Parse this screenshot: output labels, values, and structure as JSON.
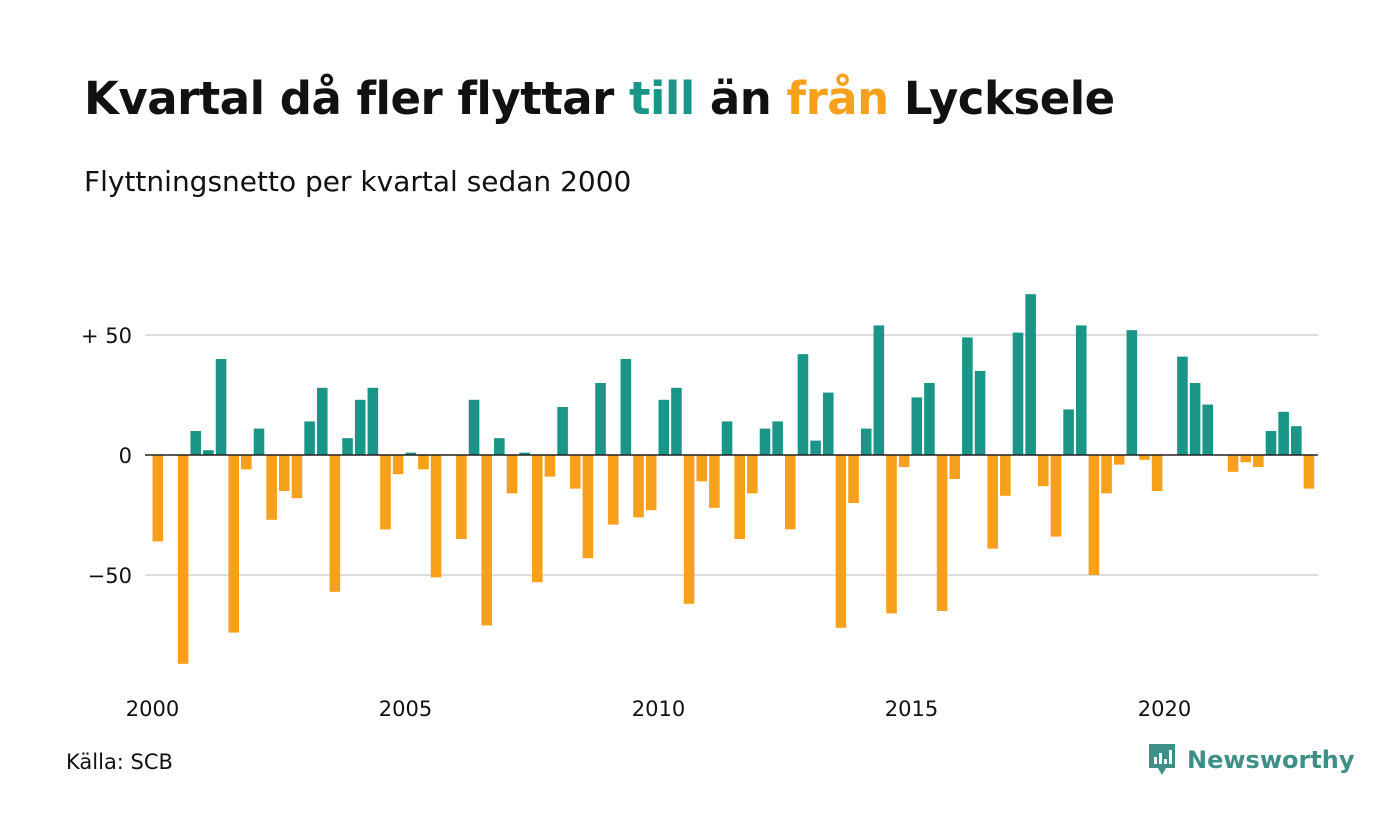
{
  "title": {
    "part1": "Kvartal då fler flyttar ",
    "pos": "till",
    "part2": " än ",
    "neg": "från",
    "part3": " Lycksele"
  },
  "subtitle": "Flyttningsnetto per kvartal sedan 2000",
  "source": "Källa: SCB",
  "brand": {
    "name": "Newsworthy",
    "icon": "newsworthy-logo-icon"
  },
  "colors": {
    "positive": "#1a9688",
    "negative": "#f7a01c",
    "grid": "#dddddd",
    "text": "#111111",
    "brand": "#3e8f86"
  },
  "chart_data": {
    "type": "bar",
    "title": "Kvartal då fler flyttar till än från Lycksele",
    "subtitle": "Flyttningsnetto per kvartal sedan 2000",
    "xlabel": "",
    "ylabel": "",
    "x_tick_labels": [
      "2000",
      "2005",
      "2010",
      "2015",
      "2020"
    ],
    "y_ticks": [
      {
        "value": 50,
        "label": "+ 50"
      },
      {
        "value": 0,
        "label": "0"
      },
      {
        "value": -50,
        "label": "−50"
      }
    ],
    "ylim": [
      -90,
      70
    ],
    "grid": true,
    "quarters_start": "2000 Q1",
    "quarters_end": "2022 Q4",
    "values": [
      -36,
      0,
      -87,
      10,
      2,
      40,
      -74,
      -6,
      11,
      -27,
      -15,
      -18,
      14,
      28,
      -57,
      7,
      23,
      28,
      -31,
      -8,
      1,
      -6,
      -51,
      0,
      -35,
      23,
      -71,
      7,
      -16,
      1,
      -53,
      -9,
      20,
      -14,
      -43,
      30,
      -29,
      40,
      -26,
      -23,
      23,
      28,
      -62,
      -11,
      -22,
      14,
      -35,
      -16,
      11,
      14,
      -31,
      42,
      6,
      26,
      -72,
      -20,
      11,
      54,
      -66,
      -5,
      24,
      30,
      -65,
      -10,
      49,
      35,
      -39,
      -17,
      51,
      67,
      -13,
      -34,
      19,
      54,
      -50,
      -16,
      -4,
      52,
      -2,
      -15,
      0,
      41,
      30,
      21,
      0,
      -7,
      -3,
      -5,
      10,
      18,
      12,
      -14
    ]
  }
}
